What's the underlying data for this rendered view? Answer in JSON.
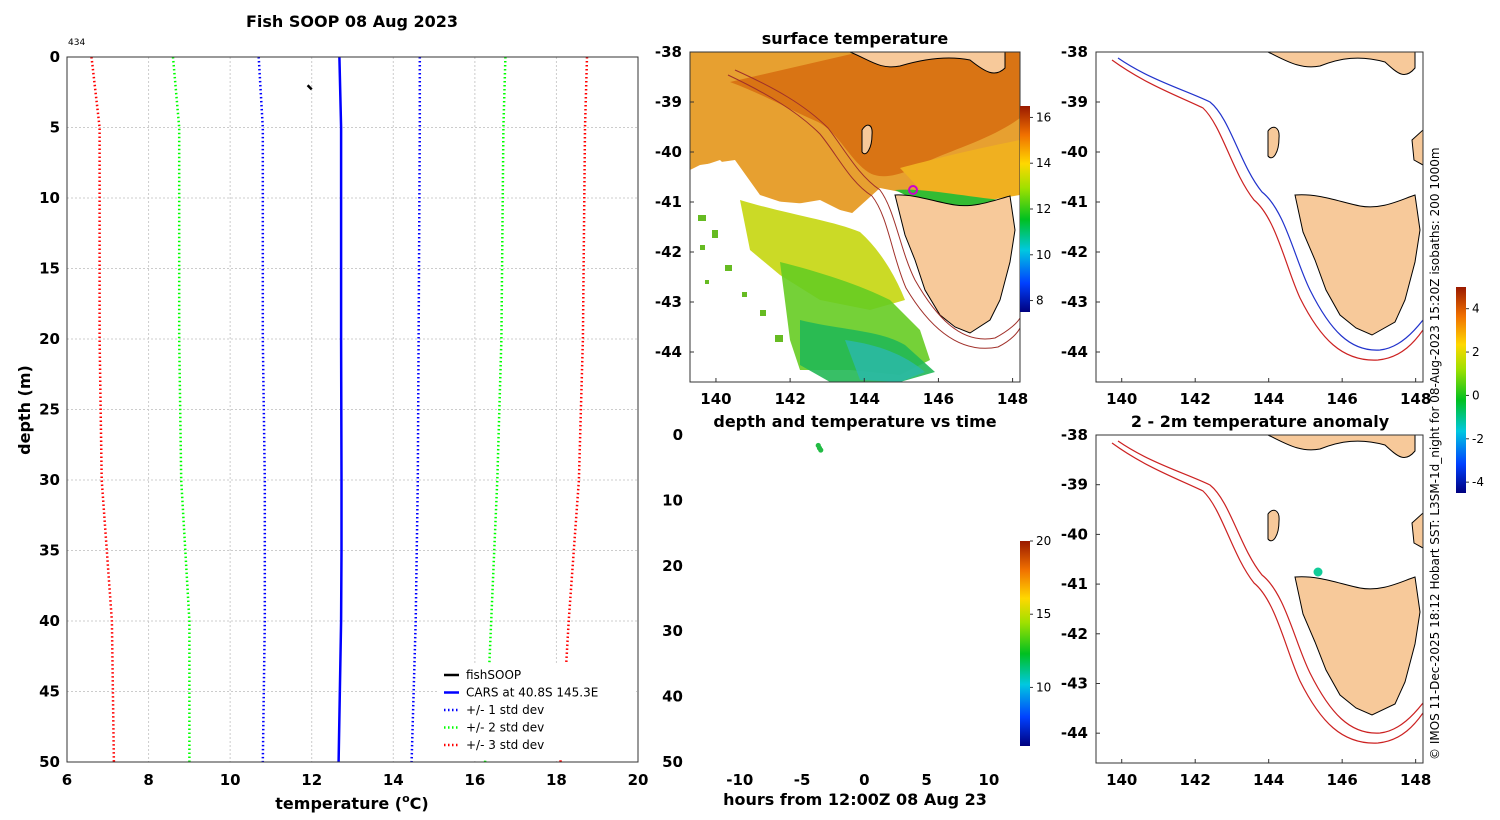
{
  "figure": {
    "credit": "© IMOS 11-Dec-2025 18:12 Hobart SST: L3SM-1d_night for 08-Aug-2023 15:20Z isobaths: 200  1000m"
  },
  "chart_data": [
    {
      "id": "profile",
      "type": "line",
      "title": "Fish SOOP 08 Aug 2023",
      "corner_label": "434",
      "xlabel_main": "temperature (",
      "xlabel_sup": "o",
      "xlabel_end": "C)",
      "ylabel": "depth (m)",
      "xlim": [
        6,
        20
      ],
      "ylim": [
        0,
        50
      ],
      "xticks": [
        "6",
        "8",
        "10",
        "12",
        "14",
        "16",
        "18",
        "20"
      ],
      "yticks": [
        "0",
        "5",
        "10",
        "15",
        "20",
        "25",
        "30",
        "35",
        "40",
        "45",
        "50"
      ],
      "grid": true,
      "legend_position": "bottom-right",
      "series": [
        {
          "name": "fishSOOP",
          "color": "#000000",
          "style": "solid",
          "x": [
            11.9,
            12.0
          ],
          "y": [
            2.0,
            2.3
          ]
        },
        {
          "name": "CARS at 40.8S 145.3E",
          "color": "#0000ff",
          "style": "solid",
          "x": [
            12.68,
            12.72,
            12.72,
            12.73,
            12.73,
            12.72,
            12.66
          ],
          "y": [
            0,
            5,
            20,
            30,
            35,
            40,
            50
          ]
        },
        {
          "name": "+/- 1 std dev",
          "color": "#0000ff",
          "style": "dotted",
          "x": [
            10.7,
            10.8,
            10.8,
            10.85,
            10.85,
            10.8
          ],
          "y": [
            0,
            5,
            20,
            30,
            40,
            50
          ]
        },
        {
          "name": "+/- 1 std dev",
          "color": "#0000ff",
          "style": "dotted",
          "legend": false,
          "x": [
            14.65,
            14.65,
            14.62,
            14.6,
            14.55,
            14.45
          ],
          "y": [
            0,
            5,
            20,
            30,
            40,
            50
          ]
        },
        {
          "name": "+/- 2 std dev",
          "color": "#00ff00",
          "style": "dotted",
          "x": [
            8.6,
            8.75,
            8.75,
            8.8,
            9.0,
            9.0
          ],
          "y": [
            0,
            5,
            20,
            30,
            40,
            50
          ]
        },
        {
          "name": "+/- 2 std dev",
          "color": "#00ff00",
          "style": "dotted",
          "legend": false,
          "x": [
            16.75,
            16.7,
            16.65,
            16.55,
            16.4,
            16.25
          ],
          "y": [
            0,
            5,
            20,
            30,
            40,
            50
          ]
        },
        {
          "name": "+/- 3 std dev",
          "color": "#ff0000",
          "style": "dotted",
          "x": [
            6.6,
            6.8,
            6.8,
            6.85,
            7.1,
            7.15
          ],
          "y": [
            0,
            5,
            20,
            30,
            40,
            50
          ]
        },
        {
          "name": "+/- 3 std dev",
          "color": "#ff0000",
          "style": "dotted",
          "legend": false,
          "x": [
            18.75,
            18.7,
            18.65,
            18.55,
            18.3,
            18.1
          ],
          "y": [
            0,
            5,
            20,
            30,
            40,
            50
          ]
        }
      ]
    },
    {
      "id": "surface",
      "type": "heatmap",
      "title": "surface temperature",
      "xlim": [
        139.3,
        148.2
      ],
      "ylim": [
        -44.6,
        -38
      ],
      "xticks": [
        "140",
        "142",
        "144",
        "146",
        "148"
      ],
      "yticks": [
        "-38",
        "-39",
        "-40",
        "-41",
        "-42",
        "-43",
        "-44"
      ],
      "colorbar": {
        "ticks": [
          "8",
          "10",
          "12",
          "14",
          "16"
        ],
        "range": [
          7.5,
          16.5
        ]
      },
      "marker": {
        "lon": 145.3,
        "lat": -40.8,
        "color": "#cc00cc"
      }
    },
    {
      "id": "timeseries",
      "type": "scatter",
      "title": "depth and temperature vs time",
      "xlabel": "hours from 12:00Z 08 Aug 23",
      "xlim": [
        -14,
        12.5
      ],
      "ylim": [
        0,
        50
      ],
      "xticks": [
        "-10",
        "-5",
        "0",
        "5",
        "10"
      ],
      "yticks": [
        "0",
        "10",
        "20",
        "30",
        "40",
        "50"
      ],
      "colorbar": {
        "ticks": [
          "10",
          "15",
          "20"
        ],
        "range": [
          6,
          20
        ]
      },
      "points": [
        {
          "x": -3.7,
          "y": 1.6,
          "temp": 12.6
        },
        {
          "x": -3.6,
          "y": 2.0,
          "temp": 12.6
        },
        {
          "x": -3.5,
          "y": 2.3,
          "temp": 12.6
        }
      ]
    },
    {
      "id": "bathymetry",
      "type": "map",
      "title": "",
      "xlim": [
        139.3,
        148.2
      ],
      "ylim": [
        -44.6,
        -38
      ],
      "xticks": [
        "140",
        "142",
        "144",
        "146",
        "148"
      ],
      "yticks": [
        "-38",
        "-39",
        "-40",
        "-41",
        "-42",
        "-43",
        "-44"
      ],
      "isobaths": [
        {
          "depth": 200,
          "color": "#2233cc"
        },
        {
          "depth": 1000,
          "color": "#cc2222"
        }
      ],
      "colorbar": {
        "ticks": [
          "-4",
          "-2",
          "0",
          "2",
          "4"
        ],
        "range": [
          -4.5,
          5
        ]
      }
    },
    {
      "id": "anomaly",
      "type": "map",
      "title": "2 - 2m temperature anomaly",
      "xlim": [
        139.3,
        148.2
      ],
      "ylim": [
        -44.6,
        -38
      ],
      "xticks": [
        "140",
        "142",
        "144",
        "146",
        "148"
      ],
      "yticks": [
        "-38",
        "-39",
        "-40",
        "-41",
        "-42",
        "-43",
        "-44"
      ],
      "marker": {
        "lon": 145.3,
        "lat": -40.8,
        "color": "#11cc99"
      }
    }
  ]
}
